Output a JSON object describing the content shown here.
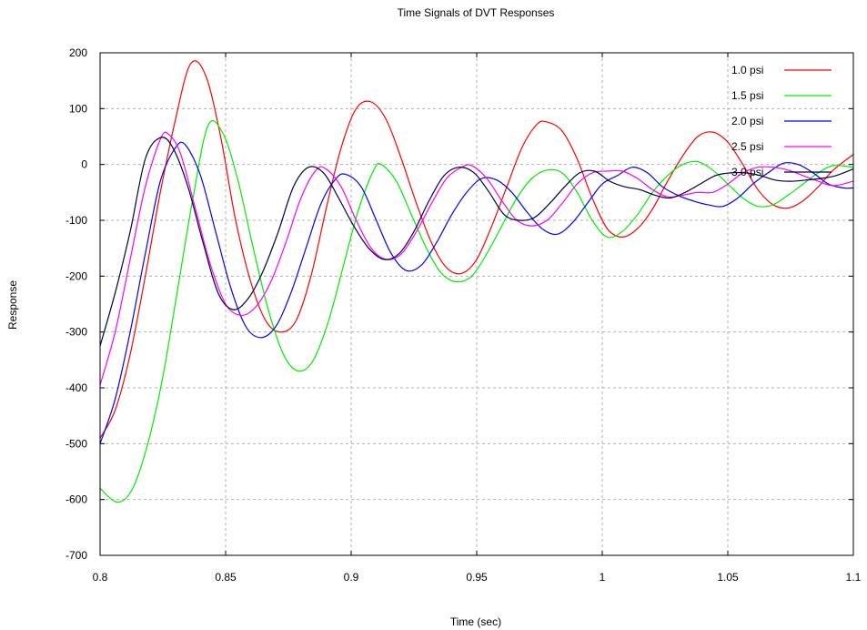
{
  "chart_data": {
    "type": "line",
    "title": "Time Signals of DVT Responses",
    "xlabel": "Time (sec)",
    "ylabel": "Response",
    "xlim": [
      0.8,
      1.1
    ],
    "ylim": [
      -700,
      200
    ],
    "xticks": [
      0.8,
      0.85,
      0.9,
      0.95,
      1.0,
      1.05,
      1.1
    ],
    "xtick_labels": [
      "0.8",
      "0.85",
      "0.9",
      "0.95",
      "1",
      "1.05",
      "1.1"
    ],
    "yticks": [
      200,
      100,
      0,
      -100,
      -200,
      -300,
      -400,
      -500,
      -600,
      -700
    ],
    "ytick_labels": [
      "200",
      "100",
      "0",
      "-100",
      "-200",
      "-300",
      "-400",
      "-500",
      "-600",
      "-700"
    ],
    "grid": true,
    "legend_position": "top-right",
    "series": [
      {
        "name": "1.0 psi",
        "color": "#ff0000",
        "points": [
          [
            0.8,
            -490
          ],
          [
            0.806,
            -440
          ],
          [
            0.812,
            -340
          ],
          [
            0.818,
            -200
          ],
          [
            0.824,
            -50
          ],
          [
            0.83,
            80
          ],
          [
            0.836,
            180
          ],
          [
            0.842,
            160
          ],
          [
            0.848,
            50
          ],
          [
            0.854,
            -100
          ],
          [
            0.86,
            -210
          ],
          [
            0.866,
            -280
          ],
          [
            0.872,
            -300
          ],
          [
            0.878,
            -280
          ],
          [
            0.884,
            -200
          ],
          [
            0.89,
            -80
          ],
          [
            0.896,
            30
          ],
          [
            0.902,
            100
          ],
          [
            0.908,
            112
          ],
          [
            0.914,
            80
          ],
          [
            0.92,
            10
          ],
          [
            0.926,
            -70
          ],
          [
            0.932,
            -140
          ],
          [
            0.938,
            -185
          ],
          [
            0.944,
            -195
          ],
          [
            0.95,
            -170
          ],
          [
            0.956,
            -110
          ],
          [
            0.962,
            -40
          ],
          [
            0.968,
            30
          ],
          [
            0.974,
            72
          ],
          [
            0.978,
            76
          ],
          [
            0.984,
            60
          ],
          [
            0.99,
            10
          ],
          [
            0.996,
            -60
          ],
          [
            1.002,
            -115
          ],
          [
            1.008,
            -130
          ],
          [
            1.014,
            -115
          ],
          [
            1.02,
            -80
          ],
          [
            1.026,
            -30
          ],
          [
            1.032,
            15
          ],
          [
            1.038,
            50
          ],
          [
            1.044,
            58
          ],
          [
            1.05,
            40
          ],
          [
            1.056,
            0
          ],
          [
            1.062,
            -45
          ],
          [
            1.068,
            -72
          ],
          [
            1.074,
            -78
          ],
          [
            1.08,
            -65
          ],
          [
            1.086,
            -40
          ],
          [
            1.092,
            -10
          ],
          [
            1.1,
            18
          ]
        ]
      },
      {
        "name": "1.5 psi",
        "color": "#00ee00",
        "points": [
          [
            0.8,
            -580
          ],
          [
            0.807,
            -605
          ],
          [
            0.813,
            -580
          ],
          [
            0.819,
            -500
          ],
          [
            0.825,
            -380
          ],
          [
            0.831,
            -220
          ],
          [
            0.837,
            -60
          ],
          [
            0.843,
            70
          ],
          [
            0.849,
            55
          ],
          [
            0.855,
            -30
          ],
          [
            0.861,
            -150
          ],
          [
            0.867,
            -260
          ],
          [
            0.873,
            -340
          ],
          [
            0.879,
            -370
          ],
          [
            0.885,
            -350
          ],
          [
            0.891,
            -280
          ],
          [
            0.897,
            -180
          ],
          [
            0.903,
            -80
          ],
          [
            0.909,
            -10
          ],
          [
            0.912,
            0
          ],
          [
            0.918,
            -30
          ],
          [
            0.924,
            -90
          ],
          [
            0.93,
            -150
          ],
          [
            0.936,
            -195
          ],
          [
            0.942,
            -210
          ],
          [
            0.948,
            -200
          ],
          [
            0.954,
            -160
          ],
          [
            0.96,
            -110
          ],
          [
            0.966,
            -60
          ],
          [
            0.972,
            -25
          ],
          [
            0.978,
            -10
          ],
          [
            0.984,
            -15
          ],
          [
            0.99,
            -50
          ],
          [
            0.996,
            -100
          ],
          [
            1.002,
            -130
          ],
          [
            1.008,
            -120
          ],
          [
            1.014,
            -90
          ],
          [
            1.02,
            -50
          ],
          [
            1.026,
            -20
          ],
          [
            1.032,
            0
          ],
          [
            1.038,
            5
          ],
          [
            1.044,
            -10
          ],
          [
            1.05,
            -35
          ],
          [
            1.056,
            -60
          ],
          [
            1.062,
            -75
          ],
          [
            1.068,
            -72
          ],
          [
            1.074,
            -55
          ],
          [
            1.08,
            -35
          ],
          [
            1.086,
            -15
          ],
          [
            1.092,
            -2
          ],
          [
            1.1,
            -5
          ]
        ]
      },
      {
        "name": "2.0 psi",
        "color": "#0000ff",
        "points": [
          [
            0.8,
            -500
          ],
          [
            0.806,
            -420
          ],
          [
            0.812,
            -300
          ],
          [
            0.818,
            -160
          ],
          [
            0.824,
            -30
          ],
          [
            0.83,
            30
          ],
          [
            0.834,
            35
          ],
          [
            0.84,
            -20
          ],
          [
            0.846,
            -120
          ],
          [
            0.852,
            -220
          ],
          [
            0.858,
            -290
          ],
          [
            0.864,
            -310
          ],
          [
            0.87,
            -290
          ],
          [
            0.876,
            -230
          ],
          [
            0.882,
            -150
          ],
          [
            0.888,
            -70
          ],
          [
            0.894,
            -25
          ],
          [
            0.898,
            -18
          ],
          [
            0.904,
            -40
          ],
          [
            0.91,
            -100
          ],
          [
            0.916,
            -160
          ],
          [
            0.922,
            -190
          ],
          [
            0.928,
            -180
          ],
          [
            0.934,
            -140
          ],
          [
            0.94,
            -90
          ],
          [
            0.946,
            -50
          ],
          [
            0.952,
            -25
          ],
          [
            0.958,
            -28
          ],
          [
            0.964,
            -50
          ],
          [
            0.97,
            -85
          ],
          [
            0.976,
            -115
          ],
          [
            0.982,
            -125
          ],
          [
            0.988,
            -105
          ],
          [
            0.994,
            -70
          ],
          [
            1.0,
            -35
          ],
          [
            1.006,
            -20
          ],
          [
            1.012,
            -5
          ],
          [
            1.018,
            -15
          ],
          [
            1.024,
            -40
          ],
          [
            1.03,
            -55
          ],
          [
            1.036,
            -65
          ],
          [
            1.042,
            -72
          ],
          [
            1.048,
            -75
          ],
          [
            1.054,
            -60
          ],
          [
            1.06,
            -35
          ],
          [
            1.066,
            -15
          ],
          [
            1.072,
            2
          ],
          [
            1.078,
            0
          ],
          [
            1.084,
            -15
          ],
          [
            1.09,
            -35
          ],
          [
            1.096,
            -42
          ],
          [
            1.1,
            -42
          ]
        ]
      },
      {
        "name": "2.5 psi",
        "color": "#ff00ff",
        "points": [
          [
            0.8,
            -395
          ],
          [
            0.806,
            -300
          ],
          [
            0.812,
            -170
          ],
          [
            0.818,
            -40
          ],
          [
            0.824,
            45
          ],
          [
            0.827,
            55
          ],
          [
            0.832,
            20
          ],
          [
            0.838,
            -80
          ],
          [
            0.844,
            -180
          ],
          [
            0.85,
            -250
          ],
          [
            0.856,
            -270
          ],
          [
            0.862,
            -255
          ],
          [
            0.868,
            -210
          ],
          [
            0.874,
            -140
          ],
          [
            0.88,
            -60
          ],
          [
            0.886,
            -10
          ],
          [
            0.89,
            -8
          ],
          [
            0.896,
            -40
          ],
          [
            0.902,
            -100
          ],
          [
            0.908,
            -150
          ],
          [
            0.914,
            -170
          ],
          [
            0.92,
            -160
          ],
          [
            0.926,
            -120
          ],
          [
            0.932,
            -70
          ],
          [
            0.938,
            -25
          ],
          [
            0.944,
            -5
          ],
          [
            0.948,
            -2
          ],
          [
            0.954,
            -25
          ],
          [
            0.96,
            -65
          ],
          [
            0.966,
            -100
          ],
          [
            0.972,
            -110
          ],
          [
            0.978,
            -100
          ],
          [
            0.984,
            -70
          ],
          [
            0.99,
            -35
          ],
          [
            0.996,
            -15
          ],
          [
            1.002,
            -12
          ],
          [
            1.008,
            -12
          ],
          [
            1.014,
            -25
          ],
          [
            1.02,
            -45
          ],
          [
            1.026,
            -58
          ],
          [
            1.032,
            -55
          ],
          [
            1.038,
            -50
          ],
          [
            1.044,
            -50
          ],
          [
            1.05,
            -35
          ],
          [
            1.056,
            -15
          ],
          [
            1.062,
            -5
          ],
          [
            1.068,
            -5
          ],
          [
            1.074,
            -10
          ],
          [
            1.08,
            -20
          ],
          [
            1.086,
            -30
          ],
          [
            1.092,
            -38
          ],
          [
            1.1,
            -30
          ]
        ]
      },
      {
        "name": "3.0 psi",
        "color": "#000044",
        "points": [
          [
            0.8,
            -325
          ],
          [
            0.806,
            -230
          ],
          [
            0.812,
            -120
          ],
          [
            0.818,
            10
          ],
          [
            0.824,
            48
          ],
          [
            0.829,
            30
          ],
          [
            0.835,
            -40
          ],
          [
            0.841,
            -140
          ],
          [
            0.847,
            -230
          ],
          [
            0.853,
            -260
          ],
          [
            0.859,
            -240
          ],
          [
            0.865,
            -190
          ],
          [
            0.871,
            -120
          ],
          [
            0.877,
            -40
          ],
          [
            0.883,
            -5
          ],
          [
            0.889,
            -15
          ],
          [
            0.895,
            -60
          ],
          [
            0.901,
            -110
          ],
          [
            0.907,
            -150
          ],
          [
            0.913,
            -170
          ],
          [
            0.919,
            -160
          ],
          [
            0.925,
            -120
          ],
          [
            0.931,
            -65
          ],
          [
            0.937,
            -20
          ],
          [
            0.943,
            -5
          ],
          [
            0.949,
            -15
          ],
          [
            0.955,
            -50
          ],
          [
            0.961,
            -90
          ],
          [
            0.967,
            -100
          ],
          [
            0.973,
            -95
          ],
          [
            0.979,
            -70
          ],
          [
            0.985,
            -40
          ],
          [
            0.991,
            -15
          ],
          [
            0.997,
            -12
          ],
          [
            1.003,
            -30
          ],
          [
            1.009,
            -40
          ],
          [
            1.015,
            -45
          ],
          [
            1.021,
            -55
          ],
          [
            1.027,
            -60
          ],
          [
            1.033,
            -50
          ],
          [
            1.039,
            -35
          ],
          [
            1.045,
            -20
          ],
          [
            1.051,
            -15
          ],
          [
            1.057,
            -15
          ],
          [
            1.063,
            -20
          ],
          [
            1.069,
            -28
          ],
          [
            1.075,
            -30
          ],
          [
            1.081,
            -28
          ],
          [
            1.087,
            -25
          ],
          [
            1.093,
            -20
          ],
          [
            1.1,
            -8
          ]
        ]
      }
    ]
  }
}
